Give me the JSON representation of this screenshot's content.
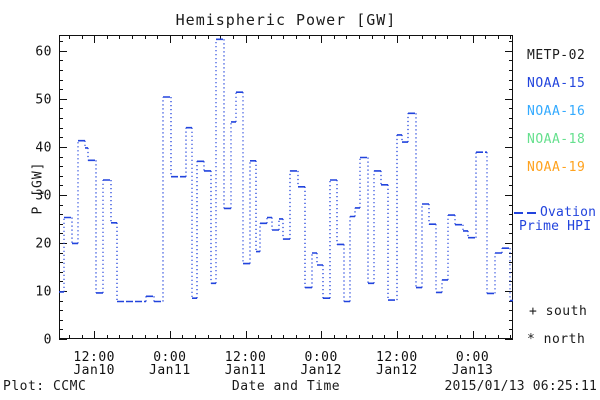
{
  "title": "Hemispheric Power [GW]",
  "axes": {
    "y_label": "P [GW]",
    "x_label": "Date and Time",
    "y_ticks": [
      0,
      10,
      20,
      30,
      40,
      50,
      60
    ],
    "y_minor_step": 2,
    "y_max": 63.3,
    "x_span_hours": 72,
    "x_first_major_offset_hours": 5.58,
    "x_major_interval_hours": 12,
    "x_minor_interval_hours": 2,
    "x_major_labels": [
      {
        "time": "12:00",
        "date": "Jan10"
      },
      {
        "time": "0:00",
        "date": "Jan11"
      },
      {
        "time": "12:00",
        "date": "Jan11"
      },
      {
        "time": "0:00",
        "date": "Jan12"
      },
      {
        "time": "12:00",
        "date": "Jan12"
      },
      {
        "time": "0:00",
        "date": "Jan13"
      }
    ]
  },
  "legend": {
    "satellites": [
      {
        "label": "METP-02",
        "color": "#1a1a1a"
      },
      {
        "label": "NOAA-15",
        "color": "#2244dd"
      },
      {
        "label": "NOAA-16",
        "color": "#33aaff"
      },
      {
        "label": "NOAA-18",
        "color": "#66e08e"
      },
      {
        "label": "NOAA-19",
        "color": "#ffa21e"
      }
    ],
    "line_entry": {
      "label_line1": "Ovation",
      "label_line2": "Prime HPI",
      "color": "#2244dd"
    },
    "south_label": "+ south",
    "north_label": "* north"
  },
  "footer": {
    "left": "Plot: CCMC",
    "timestamp": "2015/01/13 06:25:11"
  },
  "chart_data": {
    "type": "line",
    "step": true,
    "title": "Hemispheric Power [GW]",
    "xlabel": "Date and Time",
    "ylabel": "P [GW]",
    "ylim": [
      0,
      63.3
    ],
    "x_start": "2015-01-10 ~06:25",
    "x_end": "2015-01-13 ~06:25",
    "line_style": {
      "horizontal": "dashed",
      "vertical": "dotted"
    },
    "series": [
      {
        "name": "Ovation Prime HPI",
        "color": "#2244dd",
        "points_hours_vs_gw": [
          [
            0.0,
            9.8
          ],
          [
            0.79,
            25.3
          ],
          [
            2.06,
            19.9
          ],
          [
            3.01,
            41.3
          ],
          [
            4.12,
            39.8
          ],
          [
            4.6,
            37.2
          ],
          [
            5.87,
            9.6
          ],
          [
            6.98,
            33.1
          ],
          [
            8.25,
            24.2
          ],
          [
            9.2,
            7.8
          ],
          [
            13.8,
            8.9
          ],
          [
            15.07,
            7.8
          ],
          [
            16.49,
            50.4
          ],
          [
            17.76,
            33.8
          ],
          [
            20.14,
            44.0
          ],
          [
            21.09,
            8.5
          ],
          [
            21.89,
            37.0
          ],
          [
            23.0,
            35.0
          ],
          [
            24.11,
            11.6
          ],
          [
            24.9,
            62.4
          ],
          [
            26.17,
            27.2
          ],
          [
            27.28,
            45.2
          ],
          [
            28.07,
            51.4
          ],
          [
            29.18,
            15.7
          ],
          [
            30.29,
            37.1
          ],
          [
            31.24,
            18.2
          ],
          [
            31.88,
            24.1
          ],
          [
            32.99,
            25.3
          ],
          [
            33.78,
            22.7
          ],
          [
            34.89,
            25.0
          ],
          [
            35.53,
            20.8
          ],
          [
            36.64,
            35.0
          ],
          [
            37.9,
            31.7
          ],
          [
            39.01,
            10.7
          ],
          [
            40.12,
            17.9
          ],
          [
            40.92,
            15.4
          ],
          [
            41.87,
            8.5
          ],
          [
            42.98,
            33.1
          ],
          [
            44.09,
            19.7
          ],
          [
            45.2,
            7.8
          ],
          [
            46.15,
            25.5
          ],
          [
            46.94,
            27.3
          ],
          [
            47.74,
            37.8
          ],
          [
            49.01,
            11.6
          ],
          [
            49.96,
            35.0
          ],
          [
            51.07,
            32.1
          ],
          [
            52.18,
            8.1
          ],
          [
            53.6,
            42.5
          ],
          [
            54.4,
            41.0
          ],
          [
            55.35,
            47.0
          ],
          [
            56.62,
            10.7
          ],
          [
            57.57,
            28.1
          ],
          [
            58.68,
            23.9
          ],
          [
            59.79,
            9.7
          ],
          [
            60.74,
            12.3
          ],
          [
            61.69,
            25.8
          ],
          [
            62.8,
            23.8
          ],
          [
            64.07,
            22.5
          ],
          [
            64.86,
            21.1
          ],
          [
            66.13,
            38.9
          ],
          [
            67.88,
            9.5
          ],
          [
            69.15,
            17.9
          ],
          [
            70.26,
            18.9
          ],
          [
            71.53,
            8.0
          ]
        ]
      }
    ]
  }
}
